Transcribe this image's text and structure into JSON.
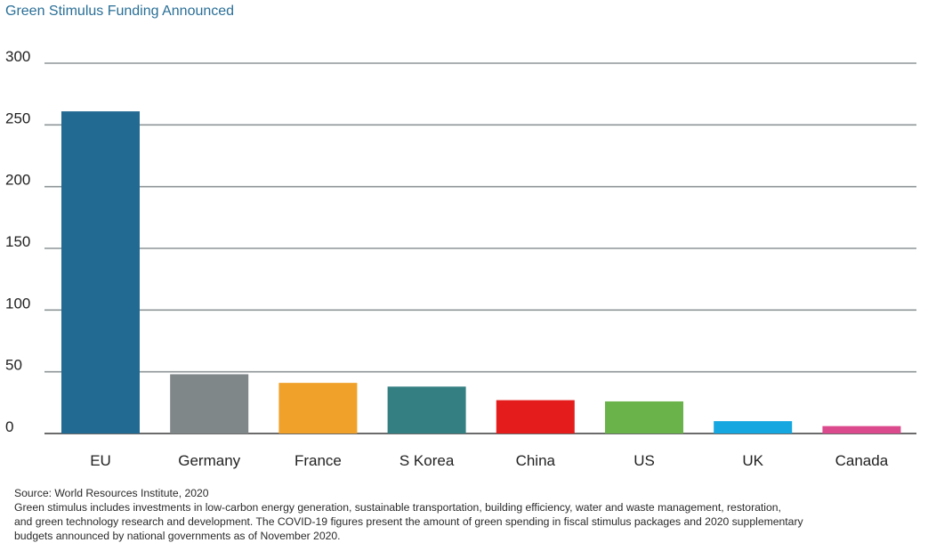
{
  "chart_data": {
    "type": "bar",
    "title": "Green Stimulus Funding Announced",
    "categories": [
      "EU",
      "Germany",
      "France",
      "S Korea",
      "China",
      "US",
      "UK",
      "Canada"
    ],
    "values": [
      261,
      48,
      41,
      38,
      27,
      26,
      10,
      6
    ],
    "colors": [
      "#236a93",
      "#7f8789",
      "#f0a129",
      "#347f82",
      "#e51c1c",
      "#6ab34a",
      "#14a7e0",
      "#db4a8c"
    ],
    "yticks": [
      0,
      50,
      100,
      150,
      200,
      250,
      300
    ],
    "ylim": [
      0,
      300
    ],
    "grid": true,
    "xlabel": "",
    "ylabel": ""
  },
  "footnote": {
    "source": "Source: World Resources Institute, 2020",
    "lines": [
      "Green stimulus includes investments in low-carbon energy generation, sustainable transportation, building efficiency, water and waste management, restoration,",
      "and green technology research and development. The COVID-19 figures present the amount of green spending in fiscal stimulus packages and 2020 supplementary",
      "budgets announced by national governments as of November 2020."
    ]
  }
}
